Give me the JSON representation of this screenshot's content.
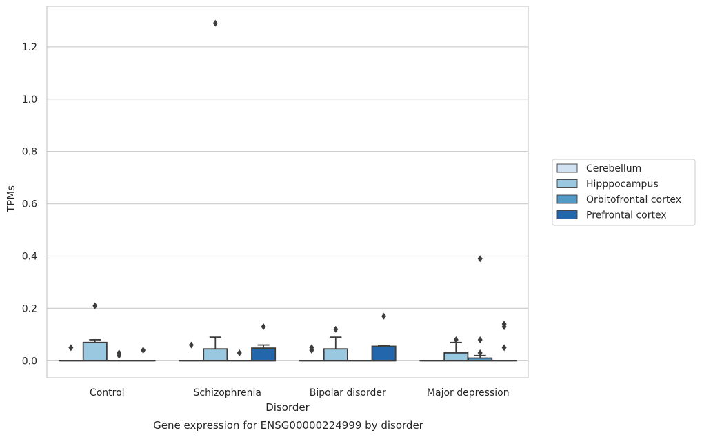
{
  "chart_data": {
    "type": "box",
    "title": "Gene expression for ENSG00000224999 by disorder",
    "xlabel": "Disorder",
    "ylabel": "TPMs",
    "ylim": [
      -0.065,
      1.355
    ],
    "yticks": [
      0.0,
      0.2,
      0.4,
      0.6,
      0.8,
      1.0,
      1.2
    ],
    "ytick_labels": [
      "0.0",
      "0.2",
      "0.4",
      "0.6",
      "0.8",
      "1.0",
      "1.2"
    ],
    "categories": [
      "Control",
      "Schizophrenia",
      "Bipolar disorder",
      "Major depression"
    ],
    "grid": true,
    "legend_position": "right",
    "series": [
      {
        "name": "Cerebellum",
        "color": "#d1e2f2",
        "boxes": [
          {
            "q1": 0,
            "median": 0,
            "q3": 0,
            "whisker_low": 0,
            "whisker_high": 0,
            "outliers": [
              0.05
            ]
          },
          {
            "q1": 0,
            "median": 0,
            "q3": 0,
            "whisker_low": 0,
            "whisker_high": 0,
            "outliers": [
              0.06
            ]
          },
          {
            "q1": 0,
            "median": 0,
            "q3": 0,
            "whisker_low": 0,
            "whisker_high": 0,
            "outliers": [
              0.04,
              0.05
            ]
          },
          {
            "q1": 0,
            "median": 0,
            "q3": 0,
            "whisker_low": 0,
            "whisker_high": 0,
            "outliers": []
          }
        ]
      },
      {
        "name": "Hipppocampus",
        "color": "#9ac8e0",
        "boxes": [
          {
            "q1": 0,
            "median": 0,
            "q3": 0.07,
            "whisker_low": 0,
            "whisker_high": 0.08,
            "outliers": [
              0.21
            ]
          },
          {
            "q1": 0,
            "median": 0,
            "q3": 0.045,
            "whisker_low": 0,
            "whisker_high": 0.09,
            "outliers": [
              1.29
            ]
          },
          {
            "q1": 0,
            "median": 0,
            "q3": 0.045,
            "whisker_low": 0,
            "whisker_high": 0.09,
            "outliers": [
              0.12
            ]
          },
          {
            "q1": 0,
            "median": 0,
            "q3": 0.03,
            "whisker_low": 0,
            "whisker_high": 0.07,
            "outliers": [
              0.08
            ]
          }
        ]
      },
      {
        "name": "Orbitofrontal cortex",
        "color": "#5399c6",
        "boxes": [
          {
            "q1": 0,
            "median": 0,
            "q3": 0,
            "whisker_low": 0,
            "whisker_high": 0,
            "outliers": [
              0.02,
              0.03
            ]
          },
          {
            "q1": 0,
            "median": 0,
            "q3": 0,
            "whisker_low": 0,
            "whisker_high": 0,
            "outliers": [
              0.03
            ]
          },
          {
            "q1": 0,
            "median": 0,
            "q3": 0,
            "whisker_low": 0,
            "whisker_high": 0,
            "outliers": []
          },
          {
            "q1": 0,
            "median": 0,
            "q3": 0.01,
            "whisker_low": 0,
            "whisker_high": 0.02,
            "outliers": [
              0.03,
              0.08,
              0.39
            ]
          }
        ]
      },
      {
        "name": "Prefrontal cortex",
        "color": "#2366ac",
        "boxes": [
          {
            "q1": 0,
            "median": 0,
            "q3": 0,
            "whisker_low": 0,
            "whisker_high": 0,
            "outliers": [
              0.04
            ]
          },
          {
            "q1": 0,
            "median": 0,
            "q3": 0.048,
            "whisker_low": 0,
            "whisker_high": 0.06,
            "outliers": [
              0.13
            ]
          },
          {
            "q1": 0,
            "median": 0,
            "q3": 0.055,
            "whisker_low": 0,
            "whisker_high": 0.058,
            "outliers": [
              0.17
            ]
          },
          {
            "q1": 0,
            "median": 0,
            "q3": 0,
            "whisker_low": 0,
            "whisker_high": 0,
            "outliers": [
              0.05,
              0.13,
              0.14
            ]
          }
        ]
      }
    ]
  }
}
